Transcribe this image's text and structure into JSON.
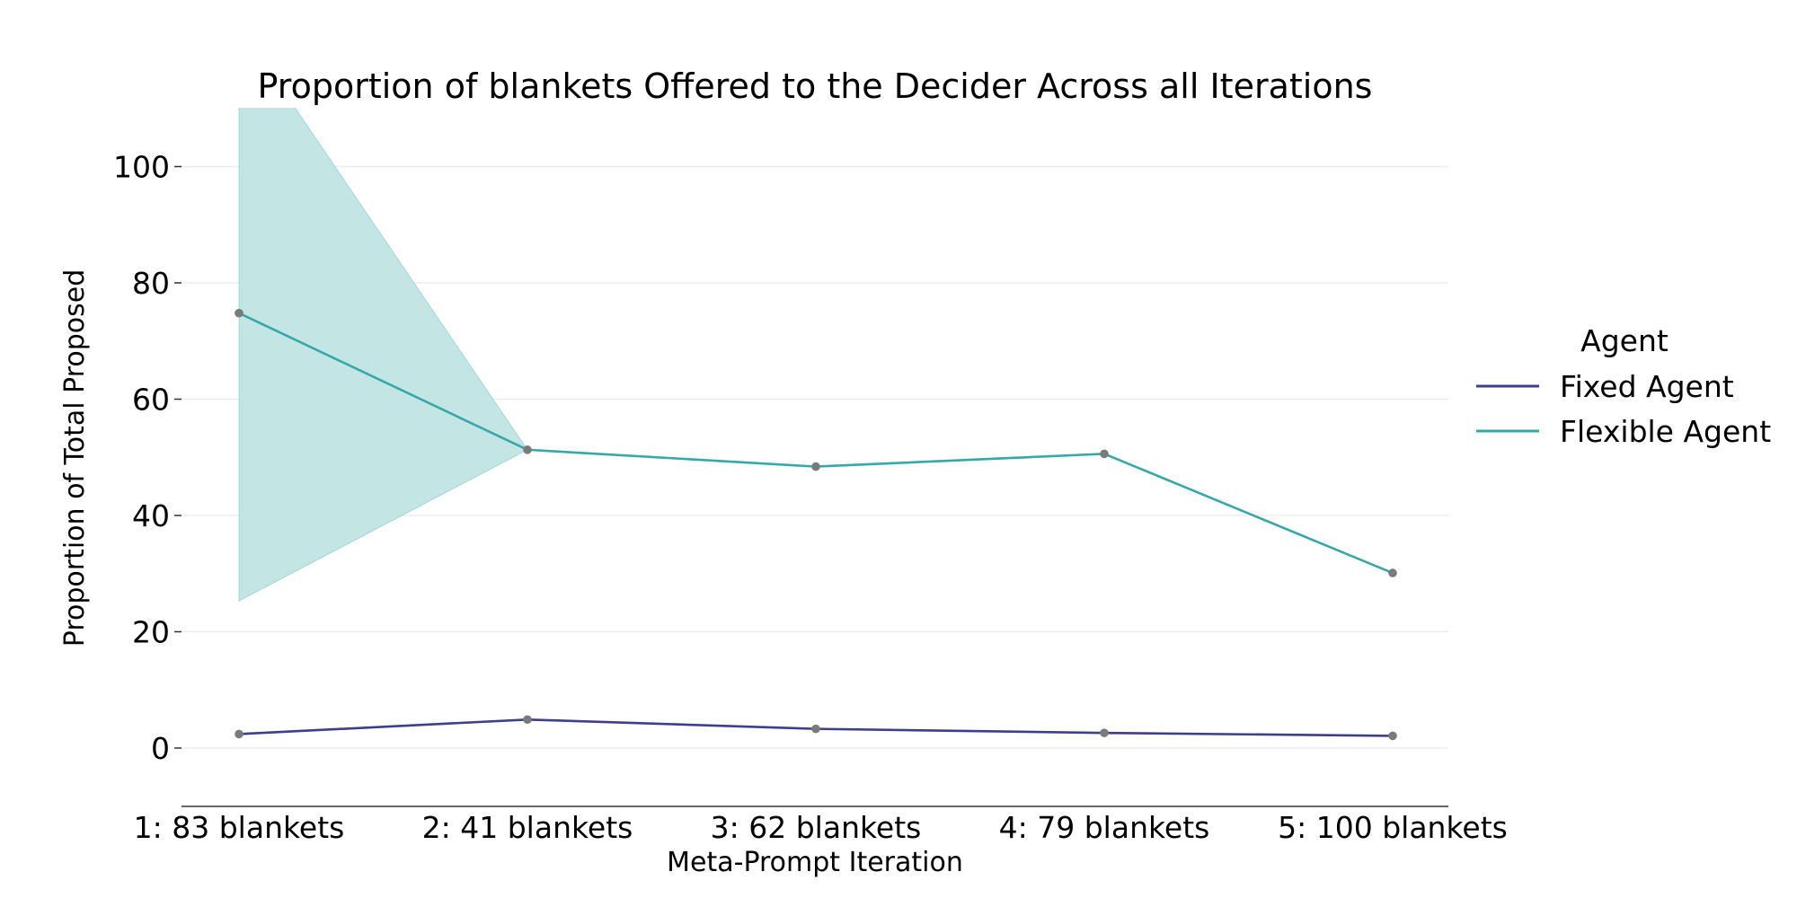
{
  "chart_data": {
    "type": "line",
    "title": "Proportion of blankets Offered to the Decider Across all Iterations",
    "xlabel": "Meta-Prompt Iteration",
    "ylabel": "Proportion of Total Proposed",
    "categories": [
      "1: 83 blankets",
      "2: 41 blankets",
      "3: 62 blankets",
      "4: 79 blankets",
      "5: 100 blankets"
    ],
    "yticks": [
      0,
      20,
      40,
      60,
      80,
      100
    ],
    "ylim": [
      -10,
      110
    ],
    "grid": true,
    "legend": {
      "title": "Agent",
      "placement": "right"
    },
    "series": [
      {
        "name": "Fixed Agent",
        "color": "#3b3f8c",
        "values": [
          2.4,
          4.9,
          3.3,
          2.6,
          2.1
        ]
      },
      {
        "name": "Flexible Agent",
        "color": "#36a8a8",
        "band_color": "#c3e6e5",
        "values": [
          74.8,
          51.3,
          48.4,
          50.6,
          30.1
        ],
        "ci_lower": [
          25.3,
          51.3,
          null,
          null,
          null
        ],
        "ci_upper": [
          124.3,
          51.3,
          null,
          null,
          null
        ]
      }
    ]
  }
}
